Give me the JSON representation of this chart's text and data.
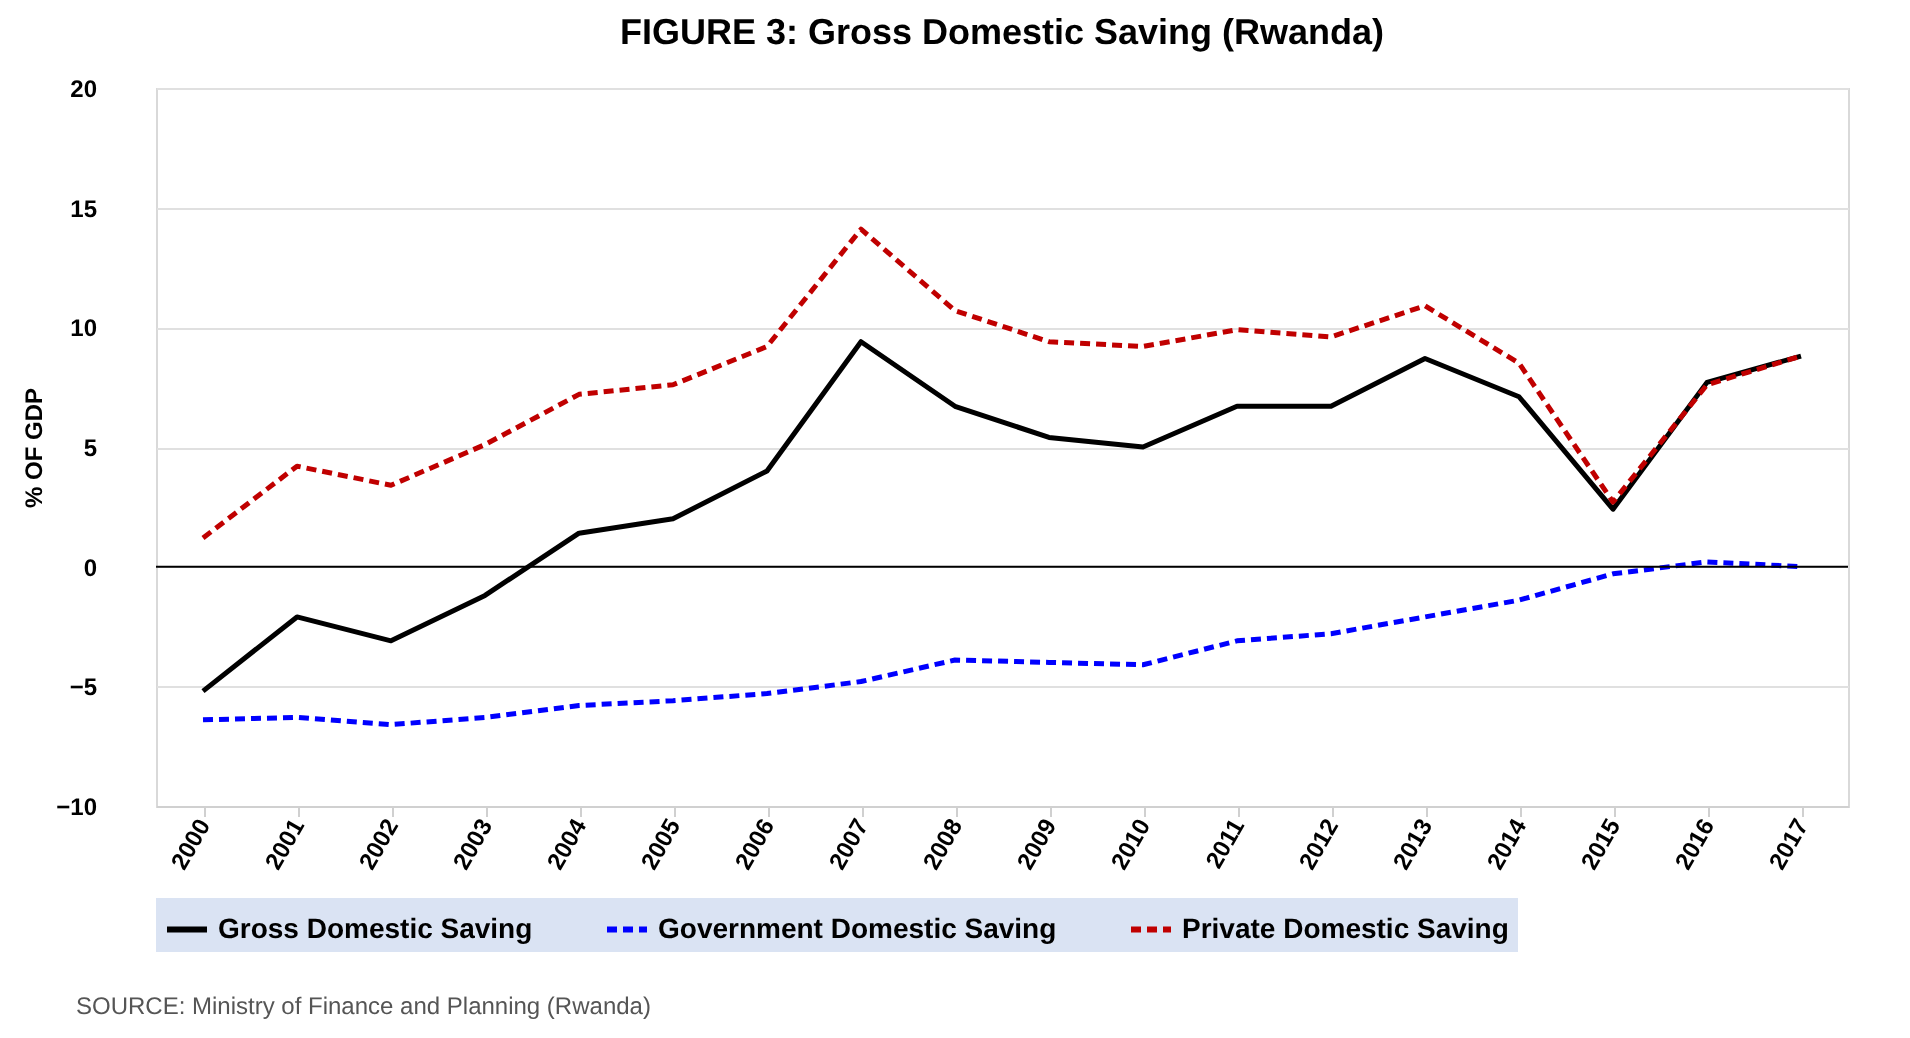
{
  "chart_data": {
    "type": "line",
    "title": "FIGURE 3: Gross Domestic Saving (Rwanda)",
    "ylabel": "% OF GDP",
    "categories": [
      "2000",
      "2001",
      "2002",
      "2003",
      "2004",
      "2005",
      "2006",
      "2007",
      "2008",
      "2009",
      "2010",
      "2011",
      "2012",
      "2013",
      "2014",
      "2015",
      "2016",
      "2017"
    ],
    "series": [
      {
        "name": "Gross Domestic Saving",
        "color": "#000000",
        "line_style": "solid",
        "values": [
          -5.2,
          -2.1,
          -3.1,
          -1.2,
          1.4,
          2.0,
          4.0,
          9.4,
          6.7,
          5.4,
          5.0,
          6.7,
          6.7,
          8.7,
          7.1,
          2.4,
          7.7,
          8.8
        ]
      },
      {
        "name": "Government Domestic Saving",
        "color": "#0000ff",
        "line_style": "dashed",
        "values": [
          -6.4,
          -6.3,
          -6.6,
          -6.3,
          -5.8,
          -5.6,
          -5.3,
          -4.8,
          -3.9,
          -4.0,
          -4.1,
          -3.1,
          -2.8,
          -2.1,
          -1.4,
          -0.3,
          0.2,
          0.0
        ]
      },
      {
        "name": "Private Domestic Saving",
        "color": "#c00000",
        "line_style": "dashed",
        "values": [
          1.2,
          4.2,
          3.4,
          5.1,
          7.2,
          7.6,
          9.2,
          14.1,
          10.7,
          9.4,
          9.2,
          9.9,
          9.6,
          10.9,
          8.5,
          2.7,
          7.6,
          8.8
        ]
      }
    ],
    "ylim": [
      -10,
      20
    ],
    "yticks": [
      -10,
      -5,
      0,
      5,
      10,
      15,
      20
    ],
    "ref_lines": [
      {
        "axis": "y",
        "value": 0,
        "color": "#000000"
      }
    ],
    "grid": "y",
    "legend": "bottom",
    "marker": "none",
    "annotations": [
      "SOURCE: Ministry of Finance and Planning (Rwanda)"
    ]
  }
}
